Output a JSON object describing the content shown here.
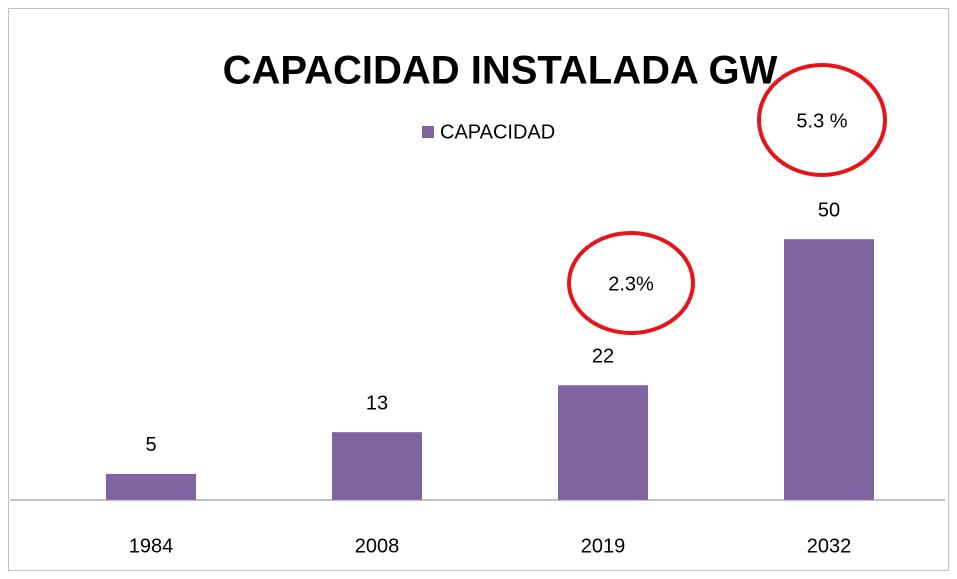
{
  "chart_data": {
    "type": "bar",
    "title": "CAPACIDAD INSTALADA GW",
    "categories": [
      "1984",
      "2008",
      "2019",
      "2032"
    ],
    "series": [
      {
        "name": "CAPACIDAD",
        "color": "#8064a2",
        "values": [
          5,
          13,
          22,
          50
        ]
      }
    ],
    "ylim": [
      0,
      60
    ],
    "grid": false,
    "legend": "top",
    "annotations": [
      "2.3%",
      "5.3 %"
    ],
    "annotation_color": "#e8141b"
  }
}
